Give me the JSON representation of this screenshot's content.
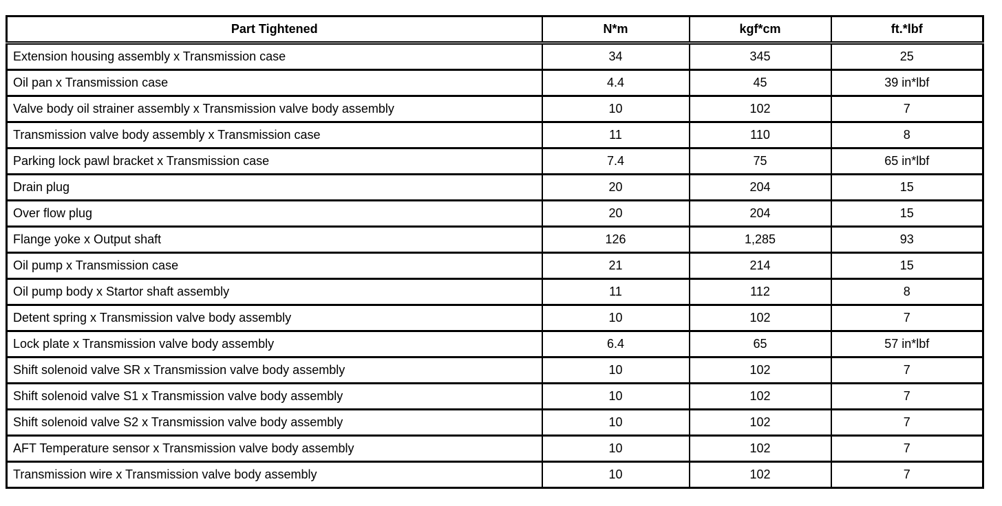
{
  "table": {
    "headers": [
      "Part Tightened",
      "N*m",
      "kgf*cm",
      "ft.*lbf"
    ],
    "rows": [
      [
        "Extension housing assembly x Transmission case",
        "34",
        "345",
        "25"
      ],
      [
        "Oil pan x Transmission case",
        "4.4",
        "45",
        "39 in*lbf"
      ],
      [
        "Valve body oil strainer assembly x Transmission valve body assembly",
        "10",
        "102",
        "7"
      ],
      [
        "Transmission valve body assembly x Transmission case",
        "11",
        "110",
        "8"
      ],
      [
        "Parking lock pawl bracket x Transmission case",
        "7.4",
        "75",
        "65 in*lbf"
      ],
      [
        "Drain plug",
        "20",
        "204",
        "15"
      ],
      [
        "Over flow plug",
        "20",
        "204",
        "15"
      ],
      [
        "Flange yoke x Output shaft",
        "126",
        "1,285",
        "93"
      ],
      [
        "Oil pump x Transmission case",
        "21",
        "214",
        "15"
      ],
      [
        "Oil pump body x Startor shaft assembly",
        "11",
        "112",
        "8"
      ],
      [
        "Detent spring x Transmission valve body assembly",
        "10",
        "102",
        "7"
      ],
      [
        "Lock plate x Transmission valve body assembly",
        "6.4",
        "65",
        "57 in*lbf"
      ],
      [
        "Shift solenoid valve SR x Transmission valve body assembly",
        "10",
        "102",
        "7"
      ],
      [
        "Shift solenoid valve S1 x Transmission valve body assembly",
        "10",
        "102",
        "7"
      ],
      [
        "Shift solenoid valve S2 x Transmission valve body assembly",
        "10",
        "102",
        "7"
      ],
      [
        "AFT Temperature sensor x Transmission valve body assembly",
        "10",
        "102",
        "7"
      ],
      [
        "Transmission wire x Transmission valve body assembly",
        "10",
        "102",
        "7"
      ]
    ],
    "colors": {
      "border": "#000000",
      "background": "#ffffff",
      "text": "#000000"
    }
  }
}
